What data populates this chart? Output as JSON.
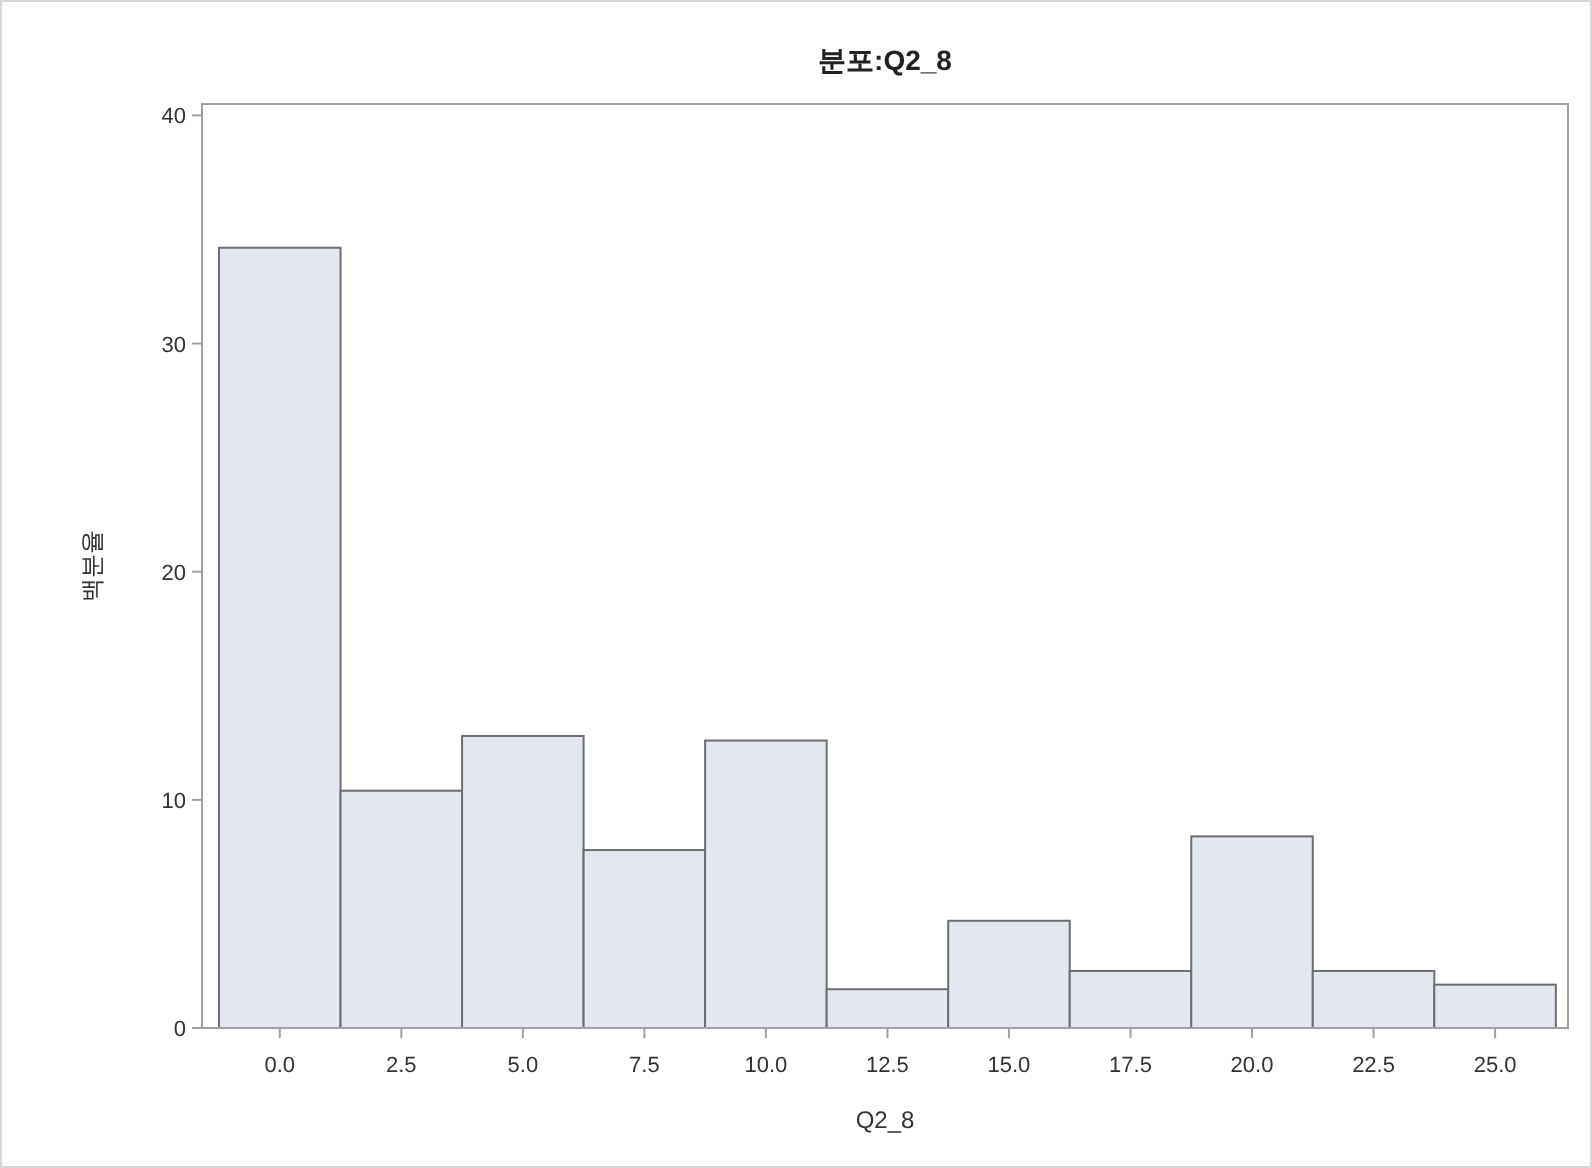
{
  "chart_data": {
    "type": "histogram",
    "title": "분포:Q2_8",
    "xlabel": "Q2_8",
    "ylabel": "백분율",
    "bins": [
      -1.25,
      1.25,
      3.75,
      6.25,
      8.75,
      11.25,
      13.75,
      16.25,
      18.75,
      21.25,
      23.75,
      26.25
    ],
    "values": [
      34.2,
      10.4,
      12.8,
      7.8,
      12.6,
      1.7,
      4.7,
      2.5,
      8.4,
      2.5,
      1.9
    ],
    "color": "#e3e7f0",
    "xlim": [
      -1.6,
      26.5
    ],
    "xticks": [
      {
        "value": 0,
        "label": "0.0"
      },
      {
        "value": 2.5,
        "label": "2.5"
      },
      {
        "value": 5,
        "label": "5.0"
      },
      {
        "value": 7.5,
        "label": "7.5"
      },
      {
        "value": 10,
        "label": "10.0"
      },
      {
        "value": 12.5,
        "label": "12.5"
      },
      {
        "value": 15,
        "label": "15.0"
      },
      {
        "value": 17.5,
        "label": "17.5"
      },
      {
        "value": 20,
        "label": "20.0"
      },
      {
        "value": 22.5,
        "label": "22.5"
      },
      {
        "value": 25,
        "label": "25.0"
      }
    ],
    "ylim": [
      0,
      40.5
    ],
    "yticks": [
      0,
      10,
      20,
      30,
      40
    ],
    "grid": false
  }
}
